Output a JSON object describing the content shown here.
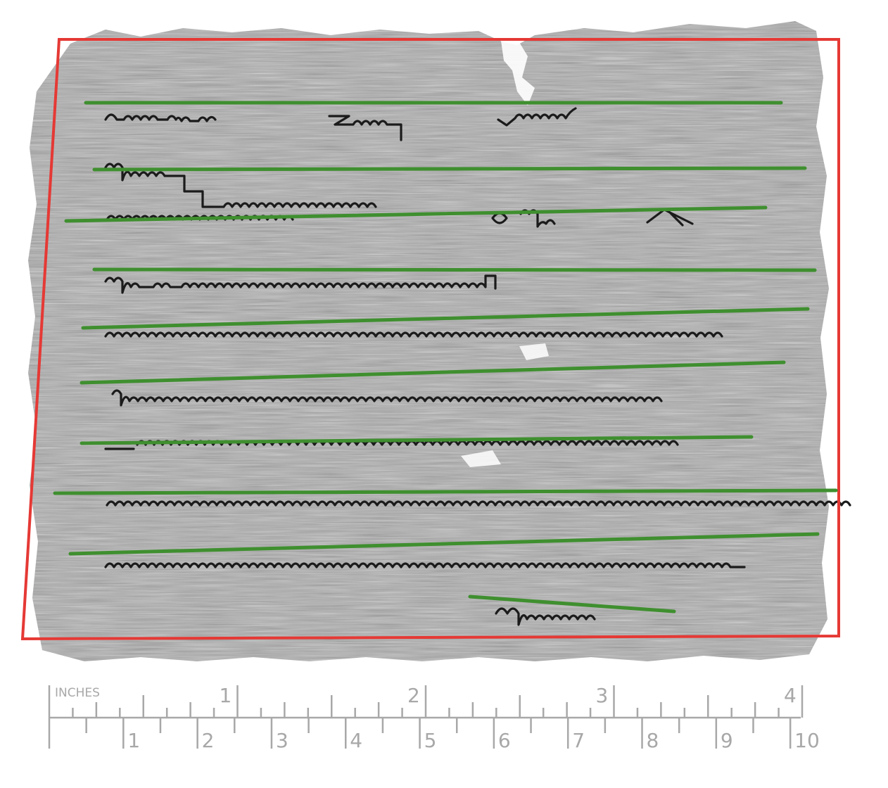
{
  "ruler": {
    "unit_label": "INCHES",
    "inch_labels": [
      "1",
      "2",
      "3",
      "4"
    ],
    "cm_labels": [
      "1",
      "2",
      "3",
      "4",
      "5",
      "6",
      "7",
      "8",
      "9",
      "10"
    ],
    "color": "#a8a8a8"
  },
  "annotation": {
    "bounding_box_color": "#e53935",
    "text_line_color": "#3f8f2f",
    "text_line_count": 10
  },
  "papyrus": {
    "base_color": "#a9a9a9",
    "ink_color": "#1b1b1b"
  }
}
